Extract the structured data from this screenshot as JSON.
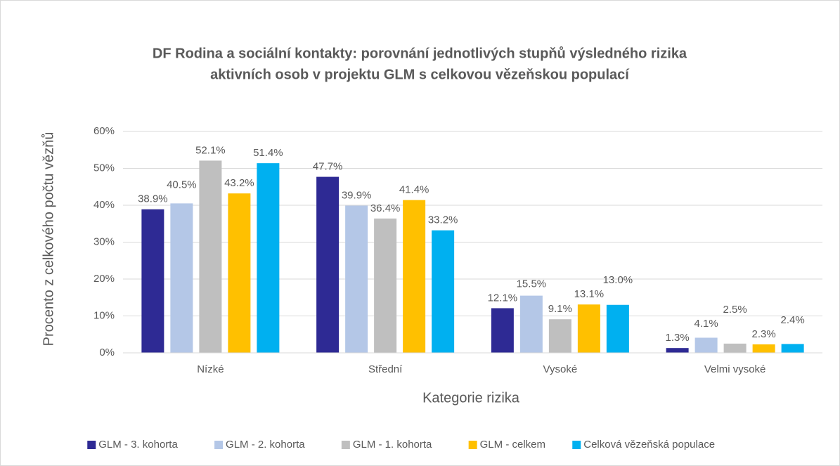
{
  "chart_data": {
    "type": "bar",
    "title": [
      "DF Rodina a sociální kontakty: porovnání jednotlivých stupňů výsledného rizika",
      "aktivních osob v projektu GLM s celkovou vězeňskou populací"
    ],
    "x_label": "Kategorie rizika",
    "y_label": "Procento z celkového počtu vězňů",
    "categories": [
      "Nízké",
      "Střední",
      "Vysoké",
      "Velmi vysoké"
    ],
    "series": [
      {
        "name": "GLM - 3. kohorta",
        "color": "#2e2a94",
        "values": [
          38.9,
          47.7,
          12.1,
          1.3
        ],
        "value_labels": [
          "38.9%",
          "47.7%",
          "12.1%",
          "1.3%"
        ]
      },
      {
        "name": "GLM - 2. kohorta",
        "color": "#b4c7e7",
        "values": [
          40.5,
          39.9,
          15.5,
          4.1
        ],
        "value_labels": [
          "40.5%",
          "39.9%",
          "15.5%",
          "4.1%"
        ]
      },
      {
        "name": "GLM - 1. kohorta",
        "color": "#bfbfbf",
        "values": [
          52.1,
          36.4,
          9.1,
          2.5
        ],
        "value_labels": [
          "52.1%",
          "36.4%",
          "9.1%",
          "2.5%"
        ]
      },
      {
        "name": "GLM - celkem",
        "color": "#ffc000",
        "values": [
          43.2,
          41.4,
          13.1,
          2.3
        ],
        "value_labels": [
          "43.2%",
          "41.4%",
          "13.1%",
          "2.3%"
        ]
      },
      {
        "name": "Celková vězeňská populace",
        "color": "#00b0f0",
        "values": [
          51.4,
          33.2,
          13.0,
          2.4
        ],
        "value_labels": [
          "51.4%",
          "33.2%",
          "13.0%",
          "2.4%"
        ]
      }
    ],
    "ylim": [
      0,
      60
    ],
    "yticks": [
      {
        "value": 0,
        "label": "0%"
      },
      {
        "value": 10,
        "label": "10%"
      },
      {
        "value": 20,
        "label": "20%"
      },
      {
        "value": 30,
        "label": "30%"
      },
      {
        "value": 40,
        "label": "40%"
      },
      {
        "value": 50,
        "label": "50%"
      },
      {
        "value": 60,
        "label": "60%"
      }
    ],
    "grid": true,
    "legend": "bottom"
  }
}
